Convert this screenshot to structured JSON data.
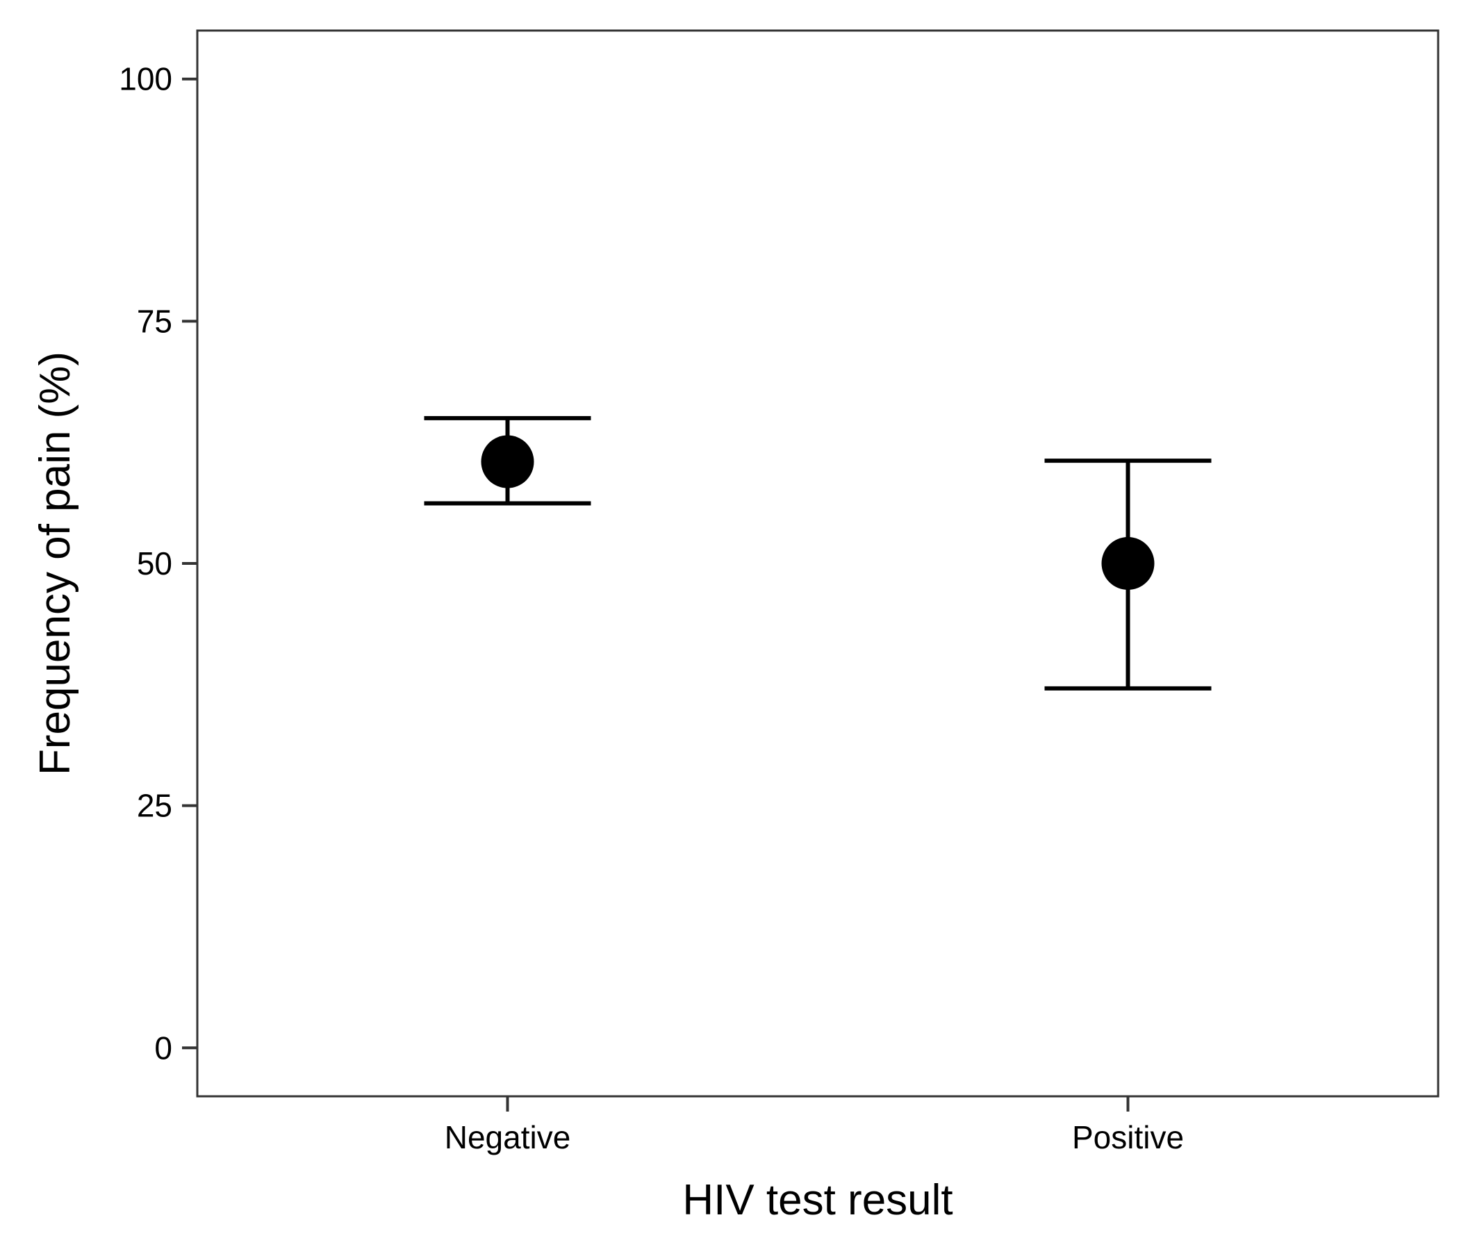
{
  "chart_data": {
    "type": "scatter",
    "subtype": "point-with-error-bars",
    "title": "",
    "xlabel": "HIV test result",
    "ylabel": "Frequency of pain (%)",
    "categories": [
      "Negative",
      "Positive"
    ],
    "series": [
      {
        "values": [
          60.5,
          50.0
        ],
        "lower": [
          56.2,
          37.1
        ],
        "upper": [
          65.0,
          60.6
        ]
      }
    ],
    "ylim": [
      -5,
      105
    ],
    "yticks": [
      0,
      25,
      50,
      75,
      100
    ],
    "ytick_labels": [
      "0",
      "25",
      "50",
      "75",
      "100"
    ],
    "grid": false,
    "legend": "none",
    "colors": {
      "marker": "#000000",
      "panel_border": "#333333",
      "background": "#ffffff"
    }
  }
}
